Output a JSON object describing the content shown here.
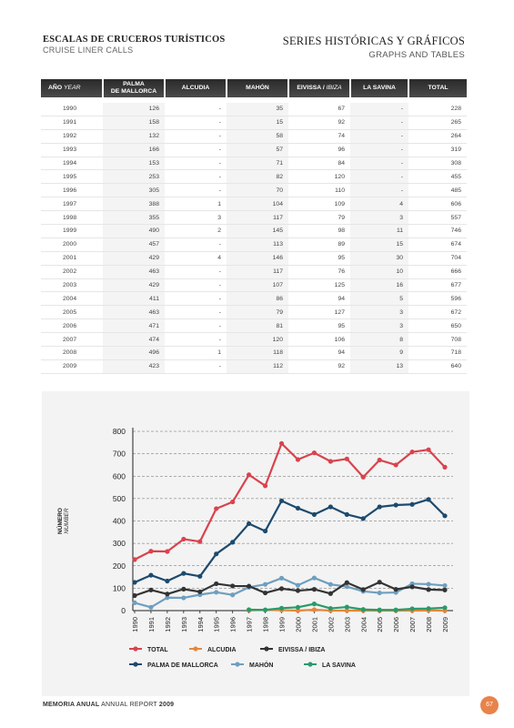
{
  "header": {
    "left_title": "ESCALAS DE CRUCEROS TURÍSTICOS",
    "left_subtitle": "CRUISE LINER CALLS",
    "right_title": "SERIES HISTÓRICAS Y GRÁFICOS",
    "right_subtitle": "GRAPHS AND TABLES"
  },
  "table": {
    "columns": [
      {
        "label": "AÑO",
        "sub": "YEAR"
      },
      {
        "label": "PALMA\nDE MALLORCA",
        "sub": ""
      },
      {
        "label": "ALCUDIA",
        "sub": ""
      },
      {
        "label": "MAHÓN",
        "sub": ""
      },
      {
        "label": "EIVISSA /",
        "sub": "IBIZA"
      },
      {
        "label": "LA SAVINA",
        "sub": ""
      },
      {
        "label": "TOTAL",
        "sub": ""
      }
    ],
    "rows": [
      [
        "1990",
        "126",
        "-",
        "35",
        "67",
        "-",
        "228"
      ],
      [
        "1991",
        "158",
        "-",
        "15",
        "92",
        "-",
        "265"
      ],
      [
        "1992",
        "132",
        "-",
        "58",
        "74",
        "-",
        "264"
      ],
      [
        "1993",
        "166",
        "-",
        "57",
        "96",
        "-",
        "319"
      ],
      [
        "1994",
        "153",
        "-",
        "71",
        "84",
        "-",
        "308"
      ],
      [
        "1995",
        "253",
        "-",
        "82",
        "120",
        "-",
        "455"
      ],
      [
        "1996",
        "305",
        "-",
        "70",
        "110",
        "-",
        "485"
      ],
      [
        "1997",
        "388",
        "1",
        "104",
        "109",
        "4",
        "606"
      ],
      [
        "1998",
        "355",
        "3",
        "117",
        "79",
        "3",
        "557"
      ],
      [
        "1999",
        "490",
        "2",
        "145",
        "98",
        "11",
        "746"
      ],
      [
        "2000",
        "457",
        "-",
        "113",
        "89",
        "15",
        "674"
      ],
      [
        "2001",
        "429",
        "4",
        "146",
        "95",
        "30",
        "704"
      ],
      [
        "2002",
        "463",
        "-",
        "117",
        "76",
        "10",
        "666"
      ],
      [
        "2003",
        "429",
        "-",
        "107",
        "125",
        "16",
        "677"
      ],
      [
        "2004",
        "411",
        "-",
        "86",
        "94",
        "5",
        "596"
      ],
      [
        "2005",
        "463",
        "-",
        "79",
        "127",
        "3",
        "672"
      ],
      [
        "2006",
        "471",
        "-",
        "81",
        "95",
        "3",
        "650"
      ],
      [
        "2007",
        "474",
        "-",
        "120",
        "106",
        "8",
        "708"
      ],
      [
        "2008",
        "496",
        "1",
        "118",
        "94",
        "9",
        "718"
      ],
      [
        "2009",
        "423",
        "-",
        "112",
        "92",
        "13",
        "640"
      ]
    ]
  },
  "chart_data": {
    "type": "line",
    "ylabel": "NÚMERO",
    "ylabel_sub": "NUMBER",
    "ylim": [
      0,
      800
    ],
    "yticks": [
      0,
      100,
      200,
      300,
      400,
      500,
      600,
      700,
      800
    ],
    "grid": "horizontal dashed",
    "legend_position": "bottom",
    "categories": [
      "1990",
      "1991",
      "1992",
      "1993",
      "1994",
      "1995",
      "1996",
      "1997",
      "1998",
      "1999",
      "2000",
      "2001",
      "2002",
      "2003",
      "2004",
      "2005",
      "2006",
      "2007",
      "2008",
      "2009"
    ],
    "series": [
      {
        "name": "TOTAL",
        "color": "#d9434d",
        "values": [
          228,
          265,
          264,
          319,
          308,
          455,
          485,
          606,
          557,
          746,
          674,
          704,
          666,
          677,
          596,
          672,
          650,
          708,
          718,
          640
        ]
      },
      {
        "name": "ALCUDIA",
        "color": "#e8863a",
        "values": [
          null,
          null,
          null,
          null,
          null,
          null,
          null,
          1,
          3,
          2,
          0,
          4,
          0,
          0,
          0,
          0,
          0,
          0,
          1,
          0
        ]
      },
      {
        "name": "EIVISSA / IBIZA",
        "color": "#333333",
        "values": [
          67,
          92,
          74,
          96,
          84,
          120,
          110,
          109,
          79,
          98,
          89,
          95,
          76,
          125,
          94,
          127,
          95,
          106,
          94,
          92
        ]
      },
      {
        "name": "PALMA DE MALLORCA",
        "color": "#1c4a6e",
        "values": [
          126,
          158,
          132,
          166,
          153,
          253,
          305,
          388,
          355,
          490,
          457,
          429,
          463,
          429,
          411,
          463,
          471,
          474,
          496,
          423
        ]
      },
      {
        "name": "MAHÓN",
        "color": "#6f9fbf",
        "values": [
          35,
          15,
          58,
          57,
          71,
          82,
          70,
          104,
          117,
          145,
          113,
          146,
          117,
          107,
          86,
          79,
          81,
          120,
          118,
          112
        ]
      },
      {
        "name": "LA SAVINA",
        "color": "#2a9a6a",
        "values": [
          null,
          null,
          null,
          null,
          null,
          null,
          null,
          4,
          3,
          11,
          15,
          30,
          10,
          16,
          5,
          3,
          3,
          8,
          9,
          13
        ]
      }
    ],
    "legend_order": [
      "TOTAL",
      "ALCUDIA",
      "EIVISSA / IBIZA",
      "PALMA DE MALLORCA",
      "MAHÓN",
      "LA SAVINA"
    ]
  },
  "footer": {
    "bold": "MEMORIA ANUAL",
    "normal": "ANNUAL REPORT",
    "year": "2009",
    "page": "67"
  }
}
